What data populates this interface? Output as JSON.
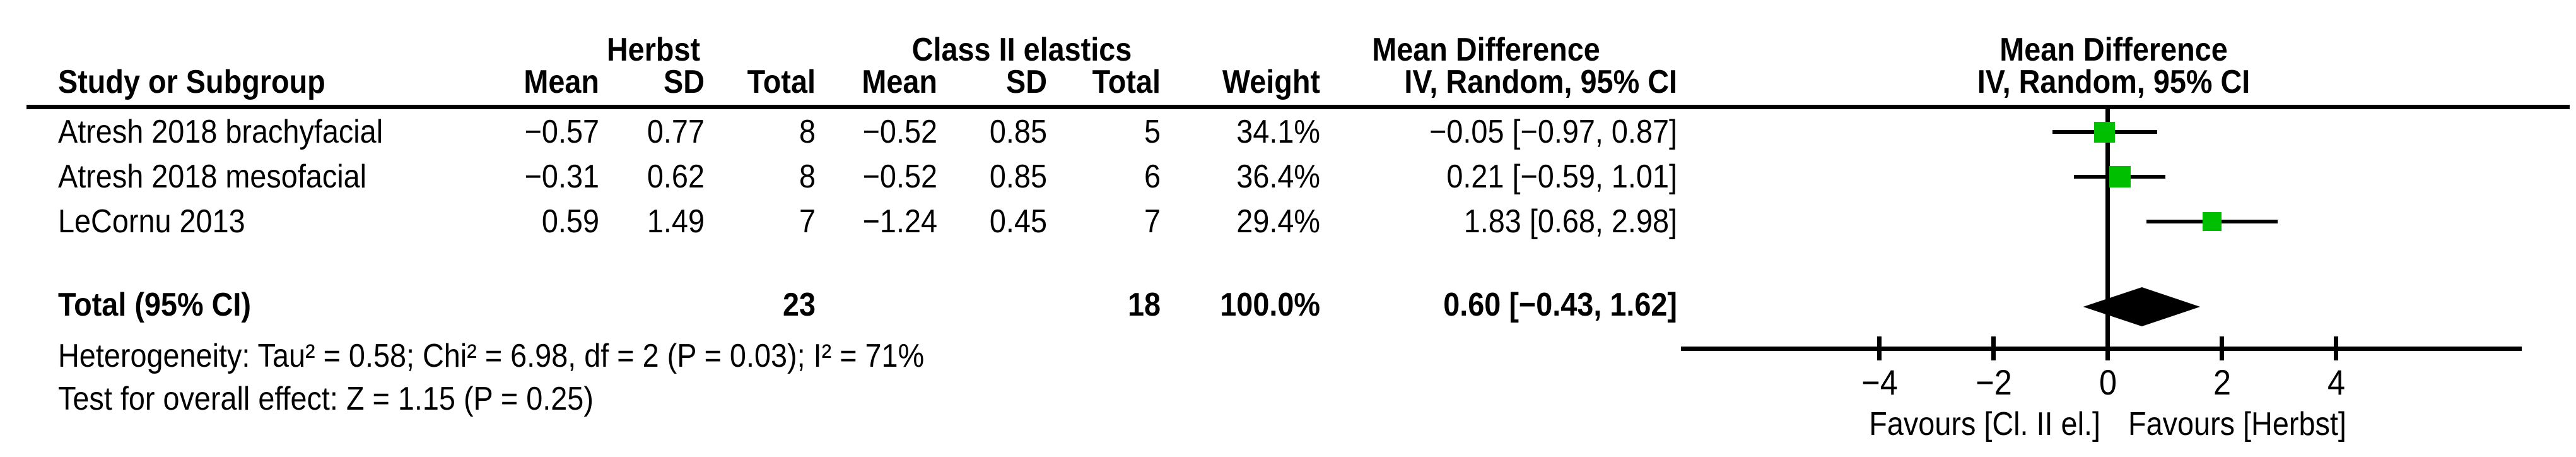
{
  "table": {
    "group_headers": {
      "experimental": "Herbst",
      "control": "Class II elastics",
      "effect_text": "Mean Difference",
      "effect_plot": "Mean Difference"
    },
    "columns": {
      "study": "Study or Subgroup",
      "mean1": "Mean",
      "sd1": "SD",
      "total1": "Total",
      "mean2": "Mean",
      "sd2": "SD",
      "total2": "Total",
      "weight": "Weight",
      "ci": "IV, Random, 95% CI",
      "ci_plot": "IV, Random, 95% CI"
    },
    "rows": [
      {
        "study": "Atresh 2018 brachyfacial",
        "mean1": "−0.57",
        "sd1": "0.77",
        "total1": "8",
        "mean2": "−0.52",
        "sd2": "0.85",
        "total2": "5",
        "weight": "34.1%",
        "ci": "−0.05 [−0.97, 0.87]"
      },
      {
        "study": "Atresh 2018 mesofacial",
        "mean1": "−0.31",
        "sd1": "0.62",
        "total1": "8",
        "mean2": "−0.52",
        "sd2": "0.85",
        "total2": "6",
        "weight": "36.4%",
        "ci": "0.21 [−0.59, 1.01]"
      },
      {
        "study": "LeCornu 2013",
        "mean1": "0.59",
        "sd1": "1.49",
        "total1": "7",
        "mean2": "−1.24",
        "sd2": "0.45",
        "total2": "7",
        "weight": "29.4%",
        "ci": "1.83 [0.68, 2.98]"
      }
    ],
    "total": {
      "label": "Total (95% CI)",
      "total1": "23",
      "total2": "18",
      "weight": "100.0%",
      "ci": "0.60 [−0.43, 1.62]"
    },
    "heterogeneity": "Heterogeneity: Tau² = 0.58; Chi² = 6.98, df = 2 (P = 0.03); I² = 71%",
    "overall_effect": "Test for overall effect: Z = 1.15 (P = 0.25)"
  },
  "chart_data": {
    "type": "scatter",
    "subtype": "forest-plot",
    "effect_measure": "Mean Difference",
    "model": "IV, Random, 95% CI",
    "studies": [
      {
        "name": "Atresh 2018 brachyfacial",
        "md": -0.05,
        "ci_low": -0.97,
        "ci_high": 0.87,
        "weight_pct": 34.1
      },
      {
        "name": "Atresh 2018 mesofacial",
        "md": 0.21,
        "ci_low": -0.59,
        "ci_high": 1.01,
        "weight_pct": 36.4
      },
      {
        "name": "LeCornu 2013",
        "md": 1.83,
        "ci_low": 0.68,
        "ci_high": 2.98,
        "weight_pct": 29.4
      }
    ],
    "total": {
      "md": 0.6,
      "ci_low": -0.43,
      "ci_high": 1.62
    },
    "x_ticks": [
      -4,
      -2,
      0,
      2,
      4
    ],
    "x_range": [
      -7.3,
      7.3
    ],
    "grid": false,
    "marker_color": "#00BE00",
    "diamond_color": "#000000",
    "favours_left": "Favours [Cl. II el.]",
    "favours_right": "Favours [Herbst]"
  }
}
